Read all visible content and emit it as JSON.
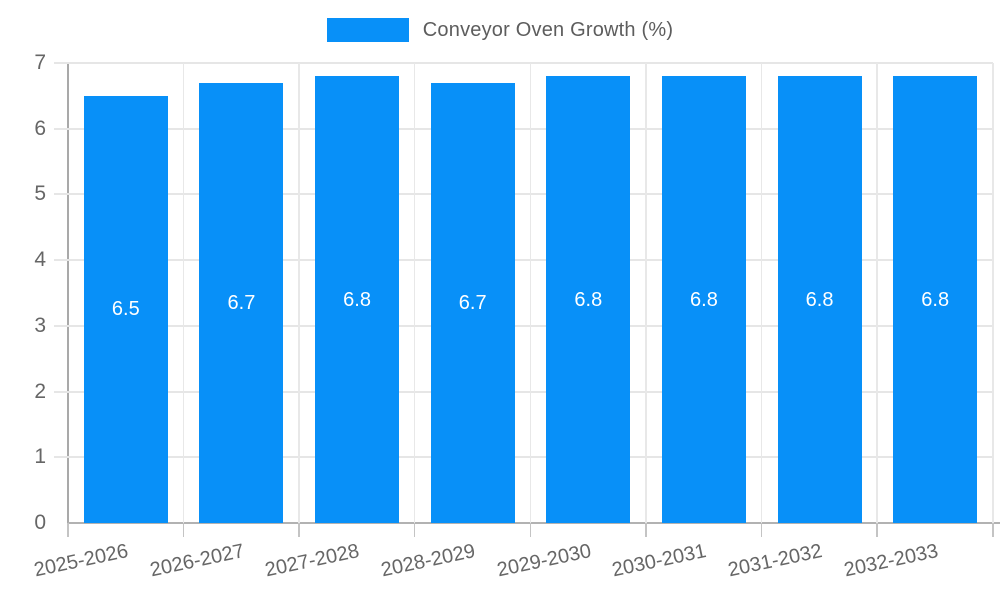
{
  "chart_data": {
    "type": "bar",
    "title": "",
    "legend_label": "Conveyor Oven Growth (%)",
    "legend_position": "top",
    "categories": [
      "2025-2026",
      "2026-2027",
      "2027-2028",
      "2028-2029",
      "2029-2030",
      "2030-2031",
      "2031-2032",
      "2032-2033"
    ],
    "values": [
      6.5,
      6.7,
      6.8,
      6.7,
      6.8,
      6.8,
      6.8,
      6.8
    ],
    "bar_labels": [
      "6.5",
      "6.7",
      "6.8",
      "6.7",
      "6.8",
      "6.8",
      "6.8",
      "6.8"
    ],
    "value_label_position": "center",
    "xlabel": "",
    "ylabel": "",
    "ylim": [
      0,
      7
    ],
    "yticks": [
      0,
      1,
      2,
      3,
      4,
      5,
      6,
      7
    ],
    "grid": true,
    "colors": {
      "bar": "#0890f8",
      "grid_y": "#e6e6e6",
      "grid_x": "#e8e8e8",
      "axis": "#a9a9a9",
      "tick_text": "#666666",
      "legend_text": "#5d5d5d",
      "value_text": "#ffffff"
    }
  }
}
